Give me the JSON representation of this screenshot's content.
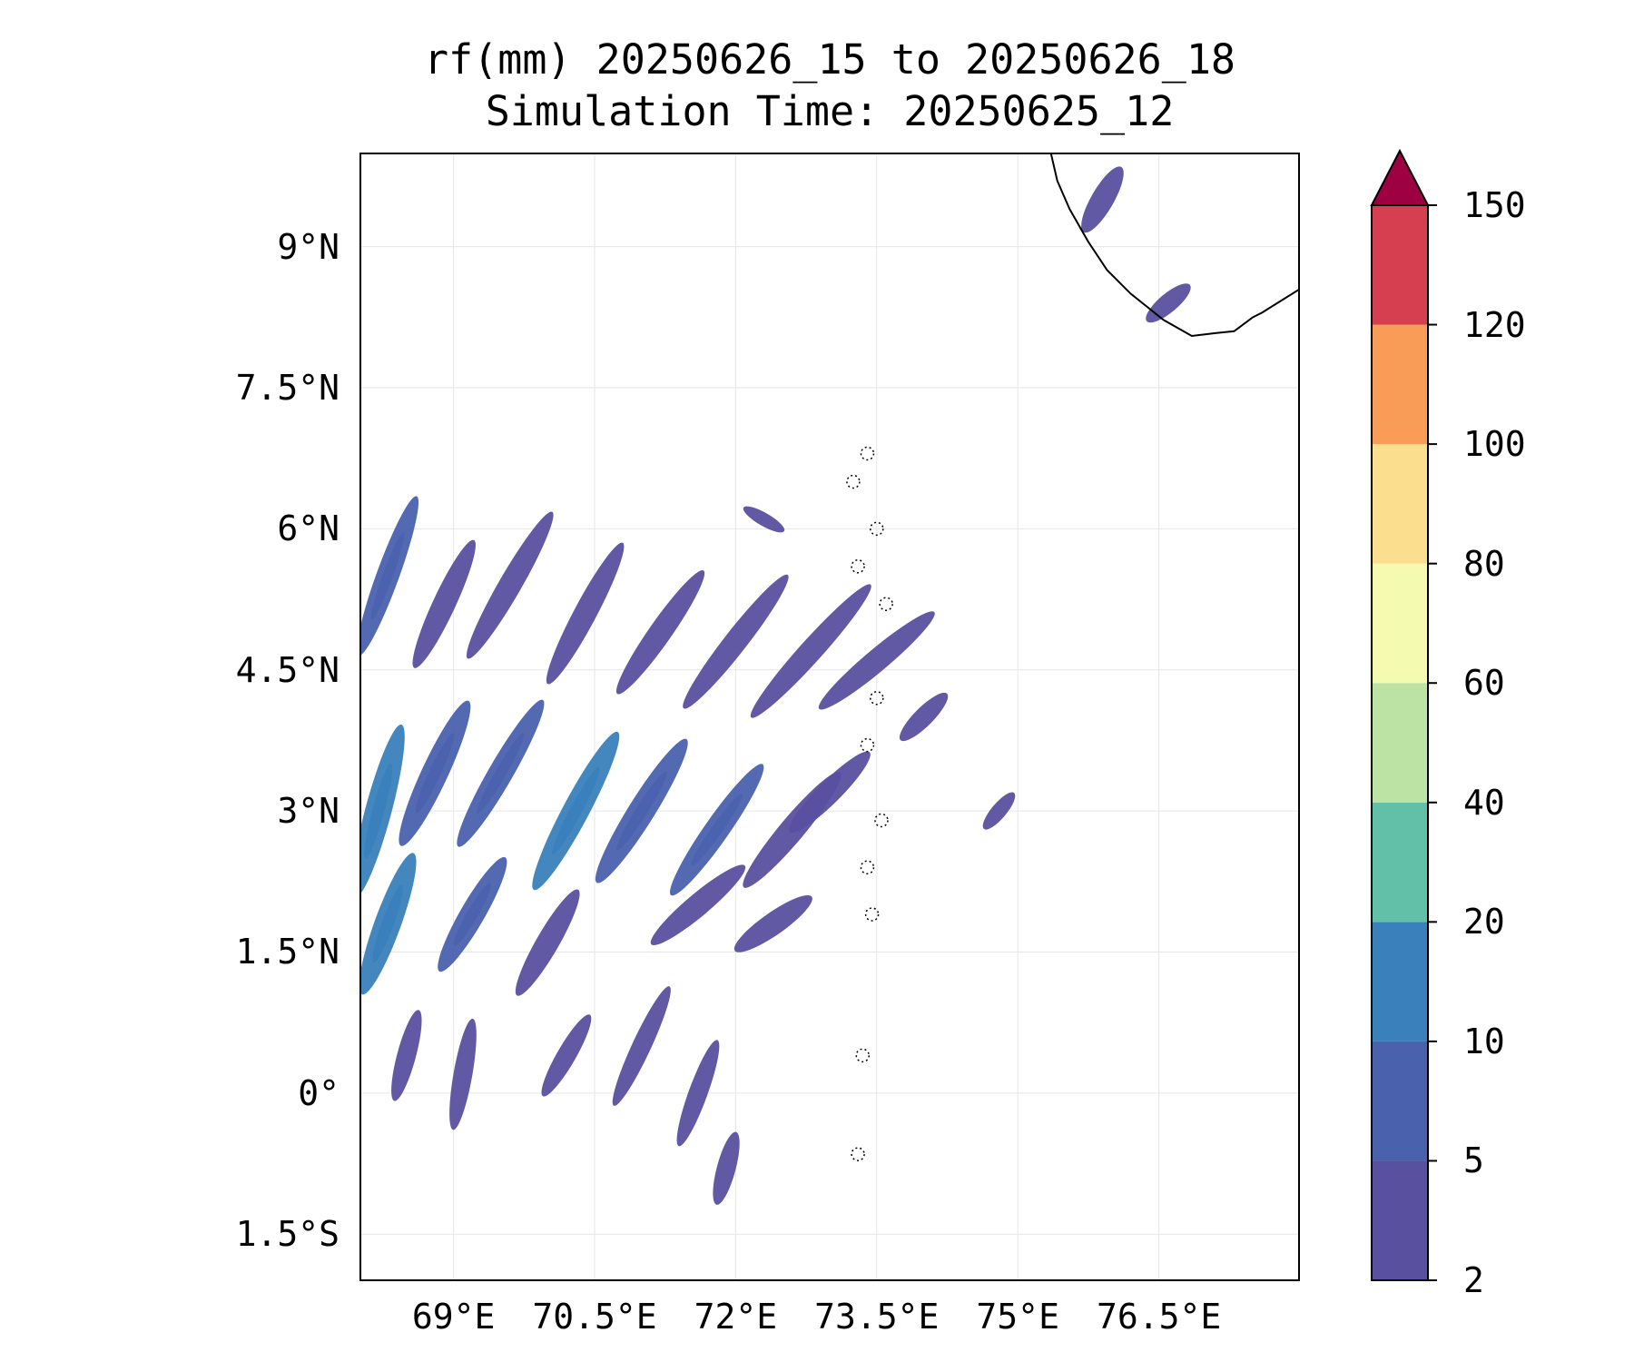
{
  "title": {
    "line1": "rf(mm) 20250626_15 to 20250626_18",
    "line2": "Simulation Time: 20250625_12"
  },
  "map": {
    "lon_range": [
      68.0,
      78.0
    ],
    "lat_range": [
      -2.0,
      10.0
    ],
    "x_ticks": [
      {
        "value": 69.0,
        "label": "69°E"
      },
      {
        "value": 70.5,
        "label": "70.5°E"
      },
      {
        "value": 72.0,
        "label": "72°E"
      },
      {
        "value": 73.5,
        "label": "73.5°E"
      },
      {
        "value": 75.0,
        "label": "75°E"
      },
      {
        "value": 76.5,
        "label": "76.5°E"
      }
    ],
    "y_ticks": [
      {
        "value": 9.0,
        "label": "9°N"
      },
      {
        "value": 7.5,
        "label": "7.5°N"
      },
      {
        "value": 6.0,
        "label": "6°N"
      },
      {
        "value": 4.5,
        "label": "4.5°N"
      },
      {
        "value": 3.0,
        "label": "3°N"
      },
      {
        "value": 1.5,
        "label": "1.5°N"
      },
      {
        "value": 0.0,
        "label": "0°"
      },
      {
        "value": -1.5,
        "label": "1.5°S"
      }
    ],
    "gridlines": true,
    "coastline": [
      [
        75.35,
        10.0
      ],
      [
        75.42,
        9.7
      ],
      [
        75.55,
        9.4
      ],
      [
        75.75,
        9.05
      ],
      [
        75.95,
        8.75
      ],
      [
        76.2,
        8.5
      ],
      [
        76.55,
        8.22
      ],
      [
        76.85,
        8.05
      ],
      [
        77.1,
        8.08
      ],
      [
        77.3,
        8.1
      ],
      [
        77.5,
        8.25
      ],
      [
        77.6,
        8.3
      ],
      [
        78.0,
        8.55
      ]
    ],
    "atolls": [
      {
        "lon": 73.4,
        "lat": 6.8
      },
      {
        "lon": 73.25,
        "lat": 6.5
      },
      {
        "lon": 73.5,
        "lat": 6.0
      },
      {
        "lon": 73.3,
        "lat": 5.6
      },
      {
        "lon": 73.6,
        "lat": 5.2
      },
      {
        "lon": 73.5,
        "lat": 4.2
      },
      {
        "lon": 73.4,
        "lat": 3.7
      },
      {
        "lon": 73.55,
        "lat": 2.9
      },
      {
        "lon": 73.4,
        "lat": 2.4
      },
      {
        "lon": 73.45,
        "lat": 1.9
      },
      {
        "lon": 73.35,
        "lat": 0.4
      },
      {
        "lon": 73.3,
        "lat": -0.65
      }
    ],
    "rain_bands": [
      {
        "lon": 68.3,
        "lat": 5.5,
        "len": 1.8,
        "angle": -70,
        "w": 0.12,
        "level": 1
      },
      {
        "lon": 68.9,
        "lat": 5.2,
        "len": 1.5,
        "angle": -65,
        "w": 0.12,
        "level": 0
      },
      {
        "lon": 69.6,
        "lat": 5.4,
        "len": 1.8,
        "angle": -60,
        "w": 0.12,
        "level": 0
      },
      {
        "lon": 70.4,
        "lat": 5.1,
        "len": 1.7,
        "angle": -62,
        "w": 0.12,
        "level": 0
      },
      {
        "lon": 71.2,
        "lat": 4.9,
        "len": 1.6,
        "angle": -55,
        "w": 0.12,
        "level": 0
      },
      {
        "lon": 72.0,
        "lat": 4.8,
        "len": 1.8,
        "angle": -52,
        "w": 0.12,
        "level": 0
      },
      {
        "lon": 72.8,
        "lat": 4.7,
        "len": 1.9,
        "angle": -48,
        "w": 0.12,
        "level": 0
      },
      {
        "lon": 73.5,
        "lat": 4.6,
        "len": 1.6,
        "angle": -40,
        "w": 0.12,
        "level": 0
      },
      {
        "lon": 68.2,
        "lat": 3.0,
        "len": 1.9,
        "angle": -75,
        "w": 0.14,
        "level": 2
      },
      {
        "lon": 68.8,
        "lat": 3.4,
        "len": 1.7,
        "angle": -65,
        "w": 0.14,
        "level": 1
      },
      {
        "lon": 69.5,
        "lat": 3.4,
        "len": 1.8,
        "angle": -60,
        "w": 0.13,
        "level": 1
      },
      {
        "lon": 70.3,
        "lat": 3.0,
        "len": 1.9,
        "angle": -62,
        "w": 0.14,
        "level": 2
      },
      {
        "lon": 71.0,
        "lat": 3.0,
        "len": 1.8,
        "angle": -58,
        "w": 0.14,
        "level": 1
      },
      {
        "lon": 71.8,
        "lat": 2.8,
        "len": 1.7,
        "angle": -55,
        "w": 0.13,
        "level": 1
      },
      {
        "lon": 72.6,
        "lat": 2.8,
        "len": 1.6,
        "angle": -50,
        "w": 0.13,
        "level": 0
      },
      {
        "lon": 73.0,
        "lat": 3.2,
        "len": 1.2,
        "angle": -45,
        "w": 0.12,
        "level": 0
      },
      {
        "lon": 68.3,
        "lat": 1.8,
        "len": 1.6,
        "angle": -70,
        "w": 0.14,
        "level": 2
      },
      {
        "lon": 69.2,
        "lat": 1.9,
        "len": 1.4,
        "angle": -60,
        "w": 0.13,
        "level": 1
      },
      {
        "lon": 70.0,
        "lat": 1.6,
        "len": 1.3,
        "angle": -60,
        "w": 0.12,
        "level": 0
      },
      {
        "lon": 71.6,
        "lat": 2.0,
        "len": 1.3,
        "angle": -40,
        "w": 0.12,
        "level": 0
      },
      {
        "lon": 72.4,
        "lat": 1.8,
        "len": 1.0,
        "angle": -35,
        "w": 0.12,
        "level": 0
      },
      {
        "lon": 68.5,
        "lat": 0.4,
        "len": 1.0,
        "angle": -75,
        "w": 0.1,
        "level": 0
      },
      {
        "lon": 69.1,
        "lat": 0.2,
        "len": 1.2,
        "angle": -80,
        "w": 0.1,
        "level": 0
      },
      {
        "lon": 70.2,
        "lat": 0.4,
        "len": 1.0,
        "angle": -60,
        "w": 0.1,
        "level": 0
      },
      {
        "lon": 71.0,
        "lat": 0.5,
        "len": 1.4,
        "angle": -65,
        "w": 0.1,
        "level": 0
      },
      {
        "lon": 71.6,
        "lat": 0.0,
        "len": 1.2,
        "angle": -70,
        "w": 0.1,
        "level": 0
      },
      {
        "lon": 71.9,
        "lat": -0.8,
        "len": 0.8,
        "angle": -75,
        "w": 0.1,
        "level": 0
      },
      {
        "lon": 75.9,
        "lat": 9.5,
        "len": 0.8,
        "angle": -60,
        "w": 0.12,
        "level": 0
      },
      {
        "lon": 76.6,
        "lat": 8.4,
        "len": 0.6,
        "angle": -40,
        "w": 0.1,
        "level": 0
      },
      {
        "lon": 74.8,
        "lat": 3.0,
        "len": 0.5,
        "angle": -50,
        "w": 0.08,
        "level": 0
      },
      {
        "lon": 74.0,
        "lat": 4.0,
        "len": 0.7,
        "angle": -45,
        "w": 0.1,
        "level": 0
      },
      {
        "lon": 72.3,
        "lat": 6.1,
        "len": 0.5,
        "angle": 30,
        "w": 0.07,
        "level": 0
      }
    ]
  },
  "colorbar": {
    "boundaries": [
      2,
      5,
      10,
      20,
      40,
      60,
      80,
      100,
      120,
      150
    ],
    "tick_labels": [
      "2",
      "5",
      "10",
      "20",
      "40",
      "60",
      "80",
      "100",
      "120",
      "150"
    ],
    "colors": [
      "#5a50a0",
      "#4a62ae",
      "#3a80bb",
      "#62bfa8",
      "#bde3a4",
      "#f4fab0",
      "#fbdf8e",
      "#f99c58",
      "#d53f50"
    ],
    "extend_max_color": "#9e0142"
  }
}
